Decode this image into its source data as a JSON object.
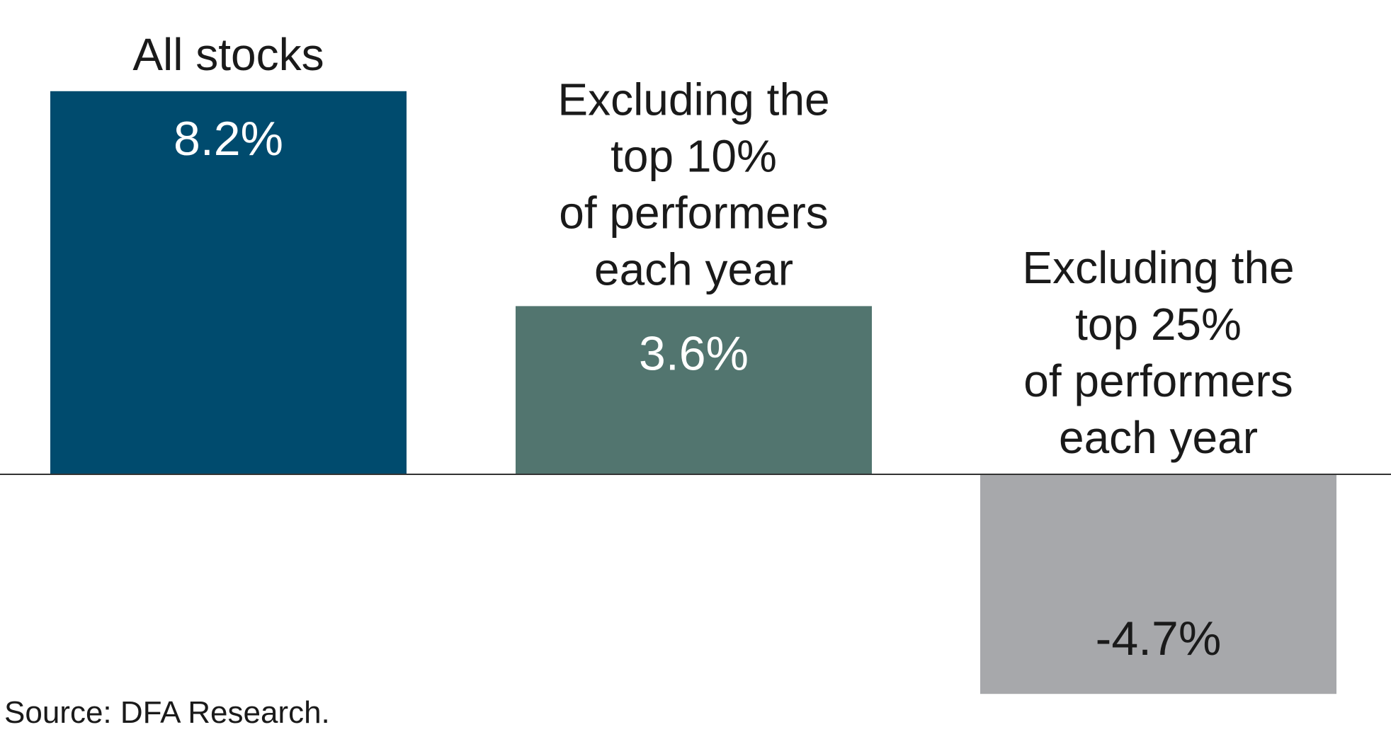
{
  "chart_data": {
    "type": "bar",
    "categories": [
      [
        "All stocks"
      ],
      [
        "Excluding the",
        "top 10%",
        "of performers",
        "each year"
      ],
      [
        "Excluding the",
        "top 25%",
        "of performers",
        "each year"
      ]
    ],
    "values": [
      8.2,
      3.6,
      -4.7
    ],
    "value_labels": [
      "8.2%",
      "3.6%",
      "-4.7%"
    ],
    "colors": [
      "#004b6e",
      "#52756f",
      "#a7a8ab"
    ],
    "value_label_colors": [
      "#ffffff",
      "#ffffff",
      "#1a1a1a"
    ],
    "title": "",
    "xlabel": "",
    "ylabel": "",
    "grid": false,
    "legend": "none"
  },
  "footer": {
    "source": "Source: DFA Research."
  }
}
